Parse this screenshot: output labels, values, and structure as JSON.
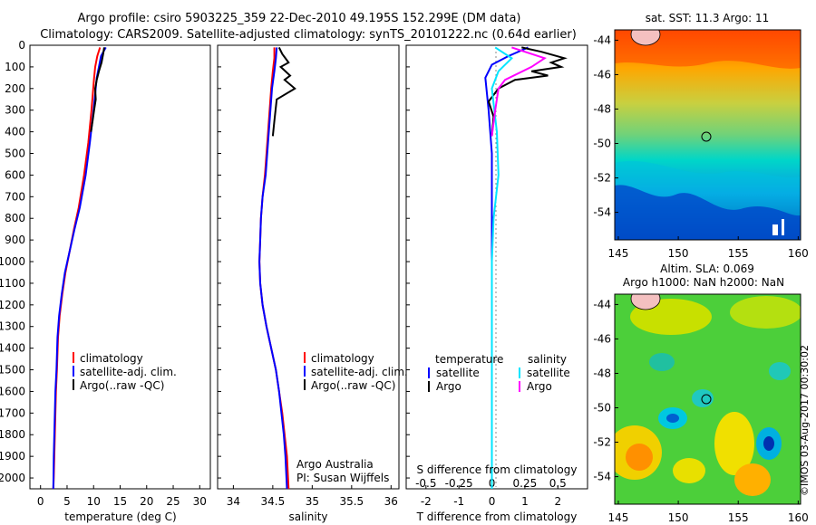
{
  "title": {
    "line1": "Argo profile: csiro 5903225_359 22-Dec-2010 49.195S 152.299E (DM data)",
    "line2": "Climatology: CARS2009. Satellite-adjusted climatology: synTS_20101222.nc (0.64d earlier)"
  },
  "colors": {
    "climatology": "#ff0000",
    "satellite": "#0000ff",
    "argo": "#000000",
    "sal_satellite": "#00e5ff",
    "sal_argo": "#ff00ff"
  },
  "chart_data": [
    {
      "type": "line",
      "id": "temperature",
      "xlabel": "temperature (deg C)",
      "xlim": [
        -2,
        32
      ],
      "ylim": [
        0,
        2050
      ],
      "xticks": [
        "0",
        "5",
        "10",
        "15",
        "20",
        "25",
        "30"
      ],
      "yticks": [
        "0",
        "100",
        "200",
        "300",
        "400",
        "500",
        "600",
        "700",
        "800",
        "900",
        "1000",
        "1100",
        "1200",
        "1300",
        "1400",
        "1500",
        "1600",
        "1700",
        "1800",
        "1900",
        "2000"
      ],
      "legend": [
        "climatology",
        "satellite-adj. clim.",
        "Argo(..raw -QC)"
      ],
      "series": [
        {
          "name": "climatology",
          "color": "#ff0000",
          "x": [
            11.2,
            10.7,
            10.3,
            10.1,
            9.6,
            9.0,
            8.2,
            7.2,
            6.3,
            5.5,
            4.7,
            4.1,
            3.6,
            3.3,
            3.1,
            2.9,
            2.8,
            2.7,
            2.6,
            2.5,
            2.4
          ],
          "y": [
            10,
            50,
            100,
            150,
            300,
            450,
            600,
            750,
            850,
            950,
            1050,
            1150,
            1250,
            1350,
            1500,
            1600,
            1700,
            1800,
            1900,
            2000,
            2050
          ]
        },
        {
          "name": "satellite-adj. clim.",
          "color": "#0000ff",
          "x": [
            12.3,
            11.4,
            11.0,
            10.6,
            10.0,
            9.3,
            8.5,
            7.4,
            6.4,
            5.5,
            4.6,
            4.0,
            3.5,
            3.2,
            3.0,
            2.8,
            2.7,
            2.6,
            2.5,
            2.45,
            2.4
          ],
          "y": [
            10,
            50,
            100,
            150,
            300,
            450,
            600,
            750,
            850,
            950,
            1050,
            1150,
            1250,
            1350,
            1500,
            1600,
            1700,
            1800,
            1900,
            2000,
            2050
          ]
        },
        {
          "name": "Argo(..raw -QC)",
          "color": "#000000",
          "x": [
            12.0,
            11.8,
            11.5,
            11.0,
            10.6,
            10.3,
            10.4,
            10.1,
            9.8,
            9.5
          ],
          "y": [
            10,
            40,
            80,
            120,
            160,
            200,
            250,
            300,
            350,
            400
          ]
        }
      ]
    },
    {
      "type": "line",
      "id": "salinity",
      "xlabel": "salinity",
      "xlim": [
        33.8,
        36.1
      ],
      "ylim": [
        0,
        2050
      ],
      "xticks": [
        "34",
        "34.5",
        "35",
        "35.5",
        "36"
      ],
      "legend": [
        "climatology",
        "satellite-adj. clim.",
        "Argo(..raw -QC)"
      ],
      "annotation": [
        "Argo Australia",
        "PI: Susan Wijffels"
      ],
      "series": [
        {
          "name": "climatology",
          "color": "#ff0000",
          "x": [
            34.52,
            34.52,
            34.5,
            34.48,
            34.44,
            34.4,
            34.37,
            34.35,
            34.34,
            34.33,
            34.34,
            34.37,
            34.42,
            34.48,
            34.54,
            34.58,
            34.62,
            34.65,
            34.68,
            34.7
          ],
          "y": [
            10,
            60,
            120,
            200,
            400,
            600,
            700,
            800,
            900,
            1000,
            1100,
            1200,
            1300,
            1400,
            1500,
            1600,
            1700,
            1800,
            1900,
            2050
          ]
        },
        {
          "name": "satellite-adj. clim.",
          "color": "#0000ff",
          "x": [
            34.55,
            34.54,
            34.52,
            34.49,
            34.45,
            34.41,
            34.37,
            34.35,
            34.34,
            34.33,
            34.34,
            34.37,
            34.42,
            34.48,
            34.54,
            34.58,
            34.61,
            34.64,
            34.66,
            34.68
          ],
          "y": [
            10,
            60,
            120,
            200,
            400,
            600,
            700,
            800,
            900,
            1000,
            1100,
            1200,
            1300,
            1400,
            1500,
            1600,
            1700,
            1800,
            1900,
            2050
          ]
        },
        {
          "name": "Argo(..raw -QC)",
          "color": "#000000",
          "x": [
            34.58,
            34.62,
            34.7,
            34.6,
            34.72,
            34.65,
            34.78,
            34.55,
            34.52,
            34.5
          ],
          "y": [
            10,
            40,
            80,
            100,
            140,
            160,
            200,
            250,
            350,
            420
          ]
        }
      ]
    },
    {
      "type": "line",
      "id": "difference",
      "xlabel": "T difference from climatology",
      "xlabel2": "S difference from climatology",
      "xlim": [
        -2.6,
        2.9
      ],
      "ylim": [
        0,
        2050
      ],
      "xticks": [
        "-2",
        "-1",
        "0",
        "1",
        "2"
      ],
      "sticks": [
        "-0.5",
        "-0.25",
        "0",
        "0.25",
        "0.5"
      ],
      "legend": {
        "temperature_header": "temperature",
        "salinity_header": "salinity",
        "items": [
          "satellite",
          "Argo",
          "satellite",
          "Argo"
        ]
      },
      "series": [
        {
          "name": "satellite",
          "color": "#0000ff",
          "x": [
            1.1,
            0.5,
            0.0,
            -0.2,
            -0.1,
            0.0,
            0.0,
            0.0,
            0.0,
            0.0,
            0.0,
            0.0
          ],
          "y": [
            10,
            50,
            90,
            150,
            300,
            500,
            700,
            900,
            1100,
            1300,
            1400,
            1450
          ]
        },
        {
          "name": "Argo",
          "color": "#000000",
          "x": [
            0.9,
            1.5,
            2.2,
            1.8,
            2.1,
            1.2,
            1.7,
            0.7,
            0.2,
            -0.1,
            0.05,
            0.0
          ],
          "y": [
            10,
            30,
            60,
            80,
            100,
            120,
            140,
            160,
            200,
            260,
            330,
            420
          ]
        },
        {
          "name": "satellite",
          "color": "#00e5ff",
          "x": [
            0.1,
            0.6,
            0.2,
            0.0,
            0.15,
            0.2,
            0.05,
            0.0,
            0.0,
            0.0,
            0.0,
            0.0,
            0.0,
            0.0,
            0.0
          ],
          "y": [
            10,
            60,
            120,
            200,
            400,
            600,
            800,
            1000,
            1200,
            1400,
            1600,
            1800,
            1900,
            2000,
            2050
          ]
        },
        {
          "name": "Argo",
          "color": "#ff00ff",
          "x": [
            0.6,
            1.6,
            1.2,
            0.4,
            0.2,
            0.1,
            0.0
          ],
          "y": [
            10,
            60,
            100,
            160,
            200,
            300,
            420
          ]
        }
      ]
    }
  ],
  "maps": {
    "sst": {
      "title": "sat. SST: 11.3 Argo: 11",
      "lat_ticks": [
        "-44",
        "-46",
        "-48",
        "-50",
        "-52",
        "-54"
      ],
      "lon_ticks": [
        "145",
        "150",
        "155",
        "160"
      ]
    },
    "sla": {
      "title1": "Altim. SLA: 0.069",
      "title2": "Argo h1000: NaN h2000: NaN",
      "lat_ticks": [
        "-44",
        "-46",
        "-48",
        "-50",
        "-52",
        "-54"
      ],
      "lon_ticks": [
        "145",
        "150",
        "155",
        "160"
      ]
    }
  },
  "footer": "©IMOS 03-Aug-2017 00:30:02"
}
